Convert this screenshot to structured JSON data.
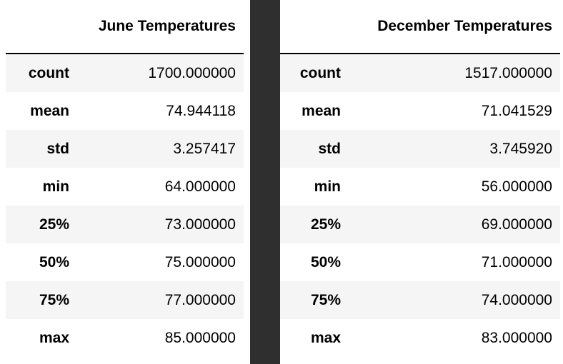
{
  "divider_color": "#2f2f2f",
  "stripe_color": "#f5f5f5",
  "june": {
    "header": "June Temperatures",
    "rows": [
      {
        "label": "count",
        "value": "1700.000000"
      },
      {
        "label": "mean",
        "value": "74.944118"
      },
      {
        "label": "std",
        "value": "3.257417"
      },
      {
        "label": "min",
        "value": "64.000000"
      },
      {
        "label": "25%",
        "value": "73.000000"
      },
      {
        "label": "50%",
        "value": "75.000000"
      },
      {
        "label": "75%",
        "value": "77.000000"
      },
      {
        "label": "max",
        "value": "85.000000"
      }
    ]
  },
  "december": {
    "header": "December Temperatures",
    "rows": [
      {
        "label": "count",
        "value": "1517.000000"
      },
      {
        "label": "mean",
        "value": "71.041529"
      },
      {
        "label": "std",
        "value": "3.745920"
      },
      {
        "label": "min",
        "value": "56.000000"
      },
      {
        "label": "25%",
        "value": "69.000000"
      },
      {
        "label": "50%",
        "value": "71.000000"
      },
      {
        "label": "75%",
        "value": "74.000000"
      },
      {
        "label": "max",
        "value": "83.000000"
      }
    ]
  }
}
